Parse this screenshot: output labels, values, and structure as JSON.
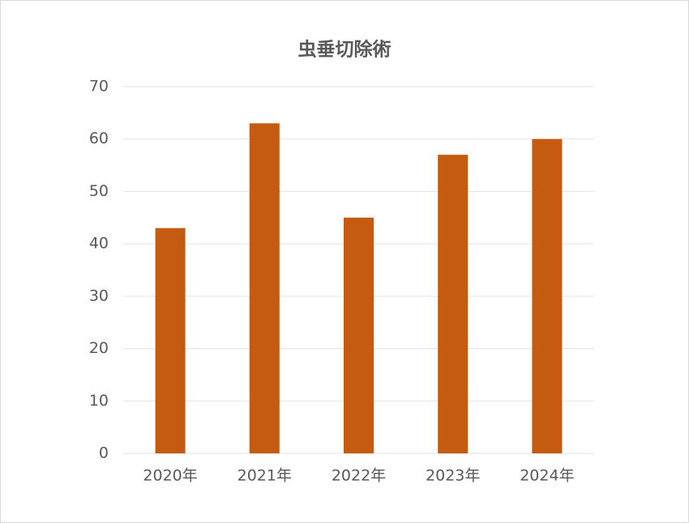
{
  "chart_data": {
    "type": "bar",
    "title": "虫垂切除術",
    "categories": [
      "2020年",
      "2021年",
      "2022年",
      "2023年",
      "2024年"
    ],
    "values": [
      43,
      63,
      45,
      57,
      60
    ],
    "color": "#c55a11",
    "ylim": [
      0,
      70
    ],
    "yticks": [
      0,
      10,
      20,
      30,
      40,
      50,
      60,
      70
    ],
    "grid": true
  }
}
